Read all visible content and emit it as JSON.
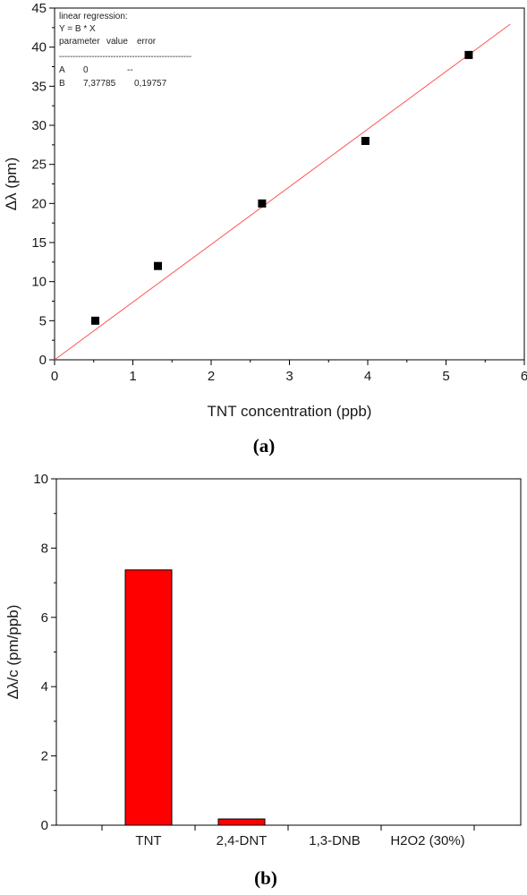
{
  "chart_data": [
    {
      "panel_label": "(a)",
      "type": "scatter",
      "xlabel": "TNT concentration (ppb)",
      "ylabel": "Δλ (pm)",
      "xlim": [
        0,
        6
      ],
      "ylim": [
        0,
        45
      ],
      "xticks": [
        "0",
        "1",
        "2",
        "3",
        "4",
        "5",
        "6"
      ],
      "yticks": [
        "0",
        "5",
        "10",
        "15",
        "20",
        "25",
        "30",
        "35",
        "40",
        "45"
      ],
      "series": [
        {
          "marker": "square",
          "color": "#000000",
          "x": [
            0.52,
            1.32,
            2.65,
            3.97,
            5.29
          ],
          "y": [
            5,
            12,
            20,
            28,
            39
          ]
        }
      ],
      "fit_line": {
        "color": "#ff5555",
        "x": [
          0,
          5.82
        ],
        "y": [
          0,
          42.94
        ]
      },
      "annotation": {
        "title": "linear regression:",
        "equation": "Y = B * X",
        "header": [
          "parameter",
          "value",
          "error"
        ],
        "separator": "-------------------------------------------------",
        "rows": [
          [
            "A",
            "0",
            "--"
          ],
          [
            "B",
            "7,37785",
            "0,19757"
          ]
        ]
      },
      "grid": false
    },
    {
      "panel_label": "(b)",
      "type": "bar",
      "xlabel": "",
      "ylabel": "Δλ/c (pm/ppb)",
      "ylim": [
        0,
        10
      ],
      "yticks": [
        "0",
        "2",
        "4",
        "6",
        "8",
        "10"
      ],
      "categories": [
        "TNT",
        "2,4-DNT",
        "1,3-DNB",
        "H2O2 (30%)"
      ],
      "values": [
        7.37,
        0.18,
        0,
        0
      ],
      "bar_color": "#ff0000",
      "grid": false
    }
  ]
}
